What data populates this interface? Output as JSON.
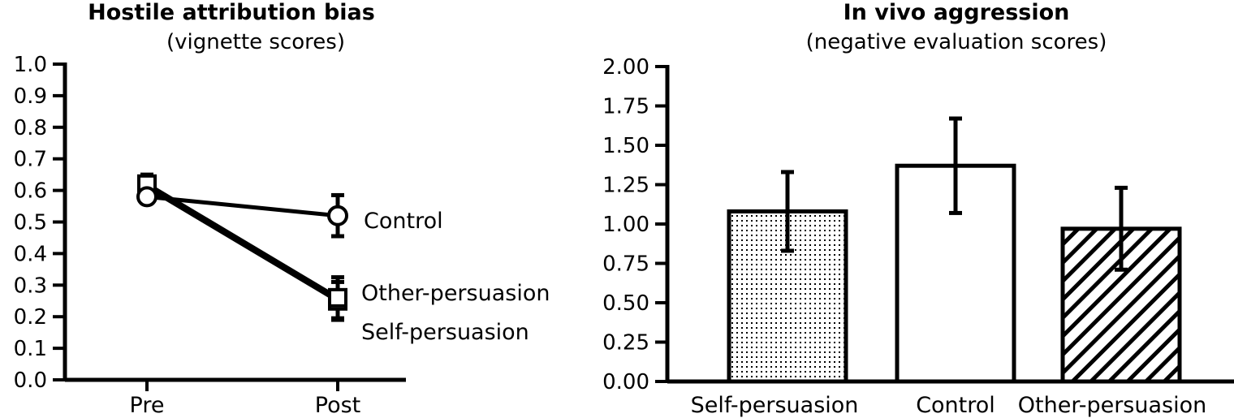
{
  "colors": {
    "ink": "#000000",
    "background": "#ffffff"
  },
  "chart_data": [
    {
      "type": "line",
      "title": "Hostile attribution bias",
      "subtitle": "(vignette scores)",
      "x": [
        "Pre",
        "Post"
      ],
      "ylim": [
        0,
        1.0
      ],
      "yticks": [
        "0.0",
        "0.1",
        "0.2",
        "0.3",
        "0.4",
        "0.5",
        "0.6",
        "0.7",
        "0.8",
        "0.9",
        "1.0"
      ],
      "grid": false,
      "series": [
        {
          "name": "Control",
          "marker": "circle-open",
          "values": [
            0.58,
            0.52
          ],
          "errors": [
            0.02,
            0.065
          ]
        },
        {
          "name": "Other-persuasion",
          "marker": "square-open",
          "values": [
            0.62,
            0.26
          ],
          "errors": [
            0.03,
            0.065
          ]
        },
        {
          "name": "Self-persuasion",
          "marker": "square-dotted",
          "values": [
            0.61,
            0.25
          ],
          "errors": [
            0.03,
            0.06
          ]
        }
      ]
    },
    {
      "type": "bar",
      "title": "In vivo aggression",
      "subtitle": "(negative evaluation scores)",
      "categories": [
        "Self-persuasion",
        "Control",
        "Other-persuasion"
      ],
      "values": [
        1.08,
        1.37,
        0.97
      ],
      "errors": [
        0.25,
        0.3,
        0.26
      ],
      "fills": [
        "dotted",
        "white",
        "hatched"
      ],
      "ylim": [
        0,
        2.0
      ],
      "yticks": [
        "0.00",
        "0.25",
        "0.50",
        "0.75",
        "1.00",
        "1.25",
        "1.50",
        "1.75",
        "2.00"
      ],
      "grid": false
    }
  ]
}
